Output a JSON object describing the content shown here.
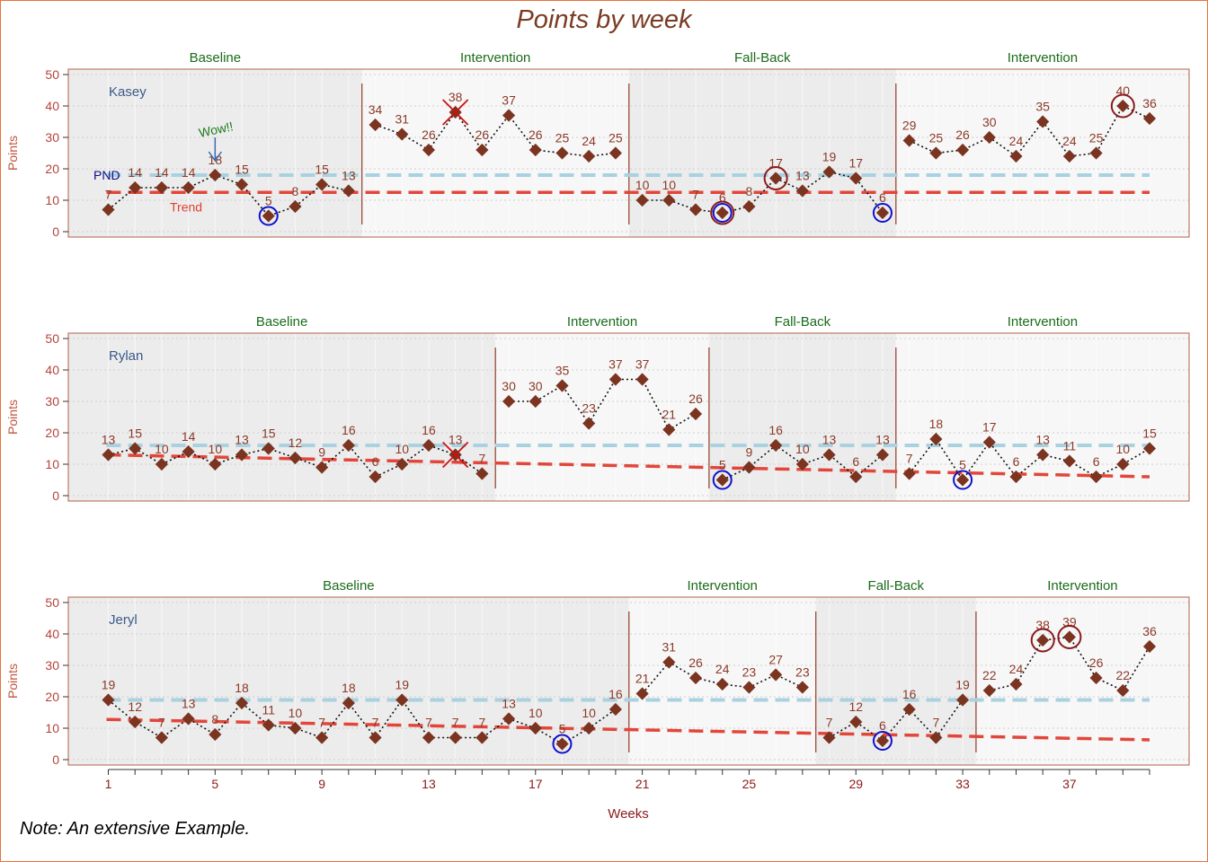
{
  "title": "Points by week",
  "note": "Note: An extensive Example.",
  "xlabel": "Weeks",
  "ylabel": "Points",
  "annotations": {
    "pnd": "PND",
    "trend": "Trend",
    "wow": "Wow!!"
  },
  "colors": {
    "points": "#7b3420",
    "pnd_line": "#a9d1e0",
    "trend_line": "#e2463a",
    "phase_line": "#9b4a35",
    "circle_max": "#8b1a1a",
    "circle_min": "#1010cc",
    "cross": "#cc1111",
    "baseline_shade": "#ececec",
    "intervention_shade": "#f7f7f7"
  },
  "chart_data": {
    "type": "line",
    "xlim": [
      1,
      40
    ],
    "ylim": [
      0,
      50
    ],
    "yticks": [
      0,
      10,
      20,
      30,
      40,
      50
    ],
    "xticks": [
      1,
      5,
      9,
      13,
      17,
      21,
      25,
      29,
      33,
      37
    ],
    "cases": [
      {
        "name": "Kasey",
        "values": [
          7,
          14,
          14,
          14,
          18,
          15,
          5,
          8,
          15,
          13,
          34,
          31,
          26,
          38,
          26,
          37,
          26,
          25,
          24,
          25,
          10,
          10,
          7,
          6,
          8,
          17,
          13,
          19,
          17,
          6,
          29,
          25,
          26,
          30,
          24,
          35,
          24,
          25,
          40,
          36
        ],
        "phases": [
          {
            "label": "Baseline",
            "start": 1,
            "end": 10
          },
          {
            "label": "Intervention",
            "start": 11,
            "end": 20
          },
          {
            "label": "Fall-Back",
            "start": 21,
            "end": 30
          },
          {
            "label": "Intervention",
            "start": 31,
            "end": 40
          }
        ],
        "pnd": 18,
        "trend": [
          12.5,
          12.5
        ],
        "max_circles": [
          24,
          26,
          39
        ],
        "min_circles": [
          7,
          24,
          30
        ],
        "crosses": [
          14
        ]
      },
      {
        "name": "Rylan",
        "values": [
          13,
          15,
          10,
          14,
          10,
          13,
          15,
          12,
          9,
          16,
          6,
          10,
          16,
          13,
          7,
          30,
          30,
          35,
          23,
          37,
          37,
          21,
          26,
          5,
          9,
          16,
          10,
          13,
          6,
          13,
          7,
          18,
          5,
          17,
          6,
          13,
          11,
          6,
          10,
          15
        ],
        "phases": [
          {
            "label": "Baseline",
            "start": 1,
            "end": 15
          },
          {
            "label": "Intervention",
            "start": 16,
            "end": 23
          },
          {
            "label": "Fall-Back",
            "start": 24,
            "end": 30
          },
          {
            "label": "Intervention",
            "start": 31,
            "end": 40
          }
        ],
        "pnd": 16,
        "trend": [
          13,
          6
        ],
        "max_circles": [],
        "min_circles": [
          24,
          33
        ],
        "crosses": [
          14
        ]
      },
      {
        "name": "Jeryl",
        "values": [
          19,
          12,
          7,
          13,
          8,
          18,
          11,
          10,
          7,
          18,
          7,
          19,
          7,
          7,
          7,
          13,
          10,
          5,
          10,
          16,
          21,
          31,
          26,
          24,
          23,
          27,
          23,
          7,
          12,
          6,
          16,
          7,
          19,
          22,
          24,
          38,
          39,
          26,
          22,
          36
        ],
        "phases": [
          {
            "label": "Baseline",
            "start": 1,
            "end": 20
          },
          {
            "label": "Intervention",
            "start": 21,
            "end": 27
          },
          {
            "label": "Fall-Back",
            "start": 28,
            "end": 33
          },
          {
            "label": "Intervention",
            "start": 34,
            "end": 40
          }
        ],
        "pnd": 19,
        "trend": [
          12.8,
          6.3
        ],
        "max_circles": [
          36,
          37
        ],
        "min_circles": [
          18,
          30
        ],
        "crosses": []
      }
    ]
  }
}
